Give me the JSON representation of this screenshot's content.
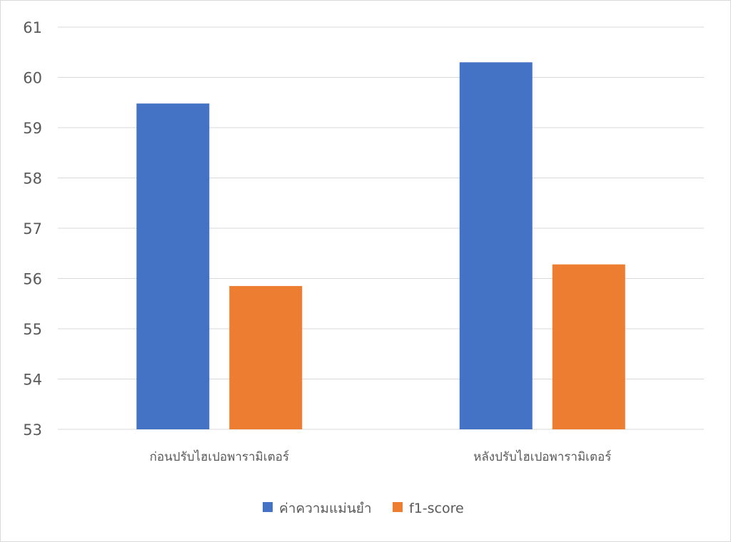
{
  "chart_data": {
    "type": "bar",
    "title": "",
    "xlabel": "",
    "ylabel": "",
    "categories": [
      "ก่อนปรับไฮเปอพารามิเตอร์",
      "หลังปรับไฮเปอพารามิเตอร์"
    ],
    "series": [
      {
        "name": "ค่าความแม่นยำ",
        "values": [
          59.48,
          60.3
        ],
        "color": "#4472C4"
      },
      {
        "name": "f1-score",
        "values": [
          55.85,
          56.28
        ],
        "color": "#ED7D31"
      }
    ],
    "ylim": [
      53,
      61
    ],
    "yticks": [
      "53",
      "54",
      "55",
      "56",
      "57",
      "58",
      "59",
      "60",
      "61"
    ],
    "grid": true,
    "legend": "bottom"
  }
}
